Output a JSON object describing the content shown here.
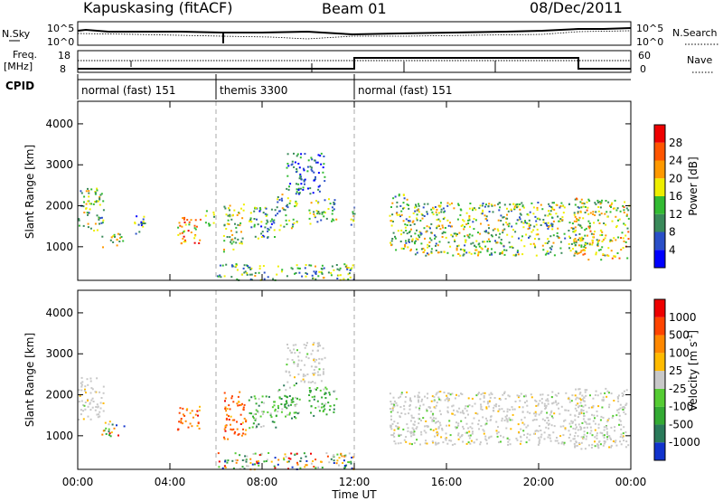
{
  "header": {
    "station": "Kapuskasing (fitACF)",
    "beam": "Beam 01",
    "date": "08/Dec/2011"
  },
  "top_panel": {
    "left_label": "N.Sky",
    "right_label": "N.Search",
    "left_ticks": [
      "10^5",
      "10^0"
    ],
    "right_ticks": [
      "10^5",
      "10^0"
    ]
  },
  "freq_panel": {
    "left_label_1": "Freq.",
    "left_label_2": "[MHz]",
    "right_label": "Nave",
    "left_ticks": [
      "18",
      "8"
    ],
    "right_ticks": [
      "60",
      "0"
    ]
  },
  "cpid": {
    "label": "CPID",
    "segments": [
      {
        "name": "normal (fast) 151",
        "start_h": 0,
        "end_h": 6
      },
      {
        "name": "themis 3300",
        "start_h": 6,
        "end_h": 12
      },
      {
        "name": "normal (fast) 151",
        "start_h": 12,
        "end_h": 24
      }
    ]
  },
  "chart_data": [
    {
      "type": "heatmap",
      "title": "Power",
      "ylabel": "Slant Range [km]",
      "xlabel": "Time UT",
      "x_ticks": [
        "00:00",
        "04:00",
        "08:00",
        "12:00",
        "16:00",
        "20:00",
        "00:00"
      ],
      "x_hours": [
        0,
        4,
        8,
        12,
        16,
        20,
        24
      ],
      "xlim_hours": [
        0,
        24
      ],
      "y_ticks": [
        1000,
        2000,
        3000,
        4000
      ],
      "ylim": [
        180,
        4550
      ],
      "colorbar": {
        "label": "Power [dB]",
        "ticks": [
          "4",
          "8",
          "12",
          "16",
          "20",
          "24",
          "28"
        ],
        "colors": [
          "#0000ff",
          "#2a4fc8",
          "#3a8a5a",
          "#33bb33",
          "#eeee00",
          "#ff9900",
          "#ff5500",
          "#ee0000"
        ]
      },
      "regions": [
        {
          "t0": 0.0,
          "t1": 1.1,
          "r0": 1400,
          "r1": 2450,
          "v": 0.45
        },
        {
          "t0": 1.0,
          "t1": 2.0,
          "r0": 1000,
          "r1": 1400,
          "v": 0.5
        },
        {
          "t0": 2.4,
          "t1": 2.9,
          "r0": 1300,
          "r1": 1900,
          "v": 0.35
        },
        {
          "t0": 4.3,
          "t1": 5.3,
          "r0": 1100,
          "r1": 1750,
          "v": 0.7
        },
        {
          "t0": 5.5,
          "t1": 5.9,
          "r0": 1500,
          "r1": 1900,
          "v": 0.4
        },
        {
          "t0": 6.3,
          "t1": 7.2,
          "r0": 900,
          "r1": 2100,
          "v": 0.5
        },
        {
          "t0": 7.4,
          "t1": 8.6,
          "r0": 1200,
          "r1": 2000,
          "v": 0.35
        },
        {
          "t0": 8.6,
          "t1": 9.5,
          "r0": 1400,
          "r1": 2300,
          "v": 0.4
        },
        {
          "t0": 9.0,
          "t1": 10.7,
          "r0": 2300,
          "r1": 3300,
          "v": 0.25
        },
        {
          "t0": 10.0,
          "t1": 11.2,
          "r0": 1500,
          "r1": 2200,
          "v": 0.4
        },
        {
          "t0": 11.8,
          "t1": 12.0,
          "r0": 1400,
          "r1": 2000,
          "v": 0.45
        },
        {
          "t0": 13.5,
          "t1": 14.3,
          "r0": 900,
          "r1": 2300,
          "v": 0.45
        },
        {
          "t0": 14.3,
          "t1": 22.0,
          "r0": 800,
          "r1": 2100,
          "v": 0.45
        },
        {
          "t0": 21.5,
          "t1": 23.9,
          "r0": 700,
          "r1": 2200,
          "v": 0.55
        },
        {
          "t0": 6.0,
          "t1": 12.0,
          "r0": 200,
          "r1": 600,
          "v": 0.4
        }
      ]
    },
    {
      "type": "heatmap",
      "title": "Velocity",
      "ylabel": "Slant Range [km]",
      "xlabel": "Time UT",
      "x_ticks": [
        "00:00",
        "04:00",
        "08:00",
        "12:00",
        "16:00",
        "20:00",
        "00:00"
      ],
      "x_hours": [
        0,
        4,
        8,
        12,
        16,
        20,
        24
      ],
      "xlim_hours": [
        0,
        24
      ],
      "y_ticks": [
        1000,
        2000,
        3000,
        4000
      ],
      "ylim": [
        180,
        4550
      ],
      "colorbar": {
        "label": "Velocity [m s^-1]",
        "label_main": "Velocity",
        "label_unit_pre": "[m s",
        "label_unit_sup": "-1",
        "label_unit_post": "]",
        "ticks": [
          "1000",
          "500",
          "100",
          "25",
          "-25",
          "-100",
          "-500",
          "-1000"
        ],
        "colors": [
          "#1133cc",
          "#2a7a5a",
          "#33aa33",
          "#55cc33",
          "#c8c8c8",
          "#ffbb00",
          "#ff8800",
          "#ff4400",
          "#ee0000"
        ]
      },
      "regions": [
        {
          "t0": 0.0,
          "t1": 1.1,
          "r0": 1400,
          "r1": 2450,
          "v": "gray"
        },
        {
          "t0": 1.0,
          "t1": 2.0,
          "r0": 1000,
          "r1": 1400,
          "v": "mix"
        },
        {
          "t0": 4.3,
          "t1": 5.3,
          "r0": 1100,
          "r1": 1750,
          "v": "neg"
        },
        {
          "t0": 6.3,
          "t1": 7.3,
          "r0": 900,
          "r1": 2100,
          "v": "neg"
        },
        {
          "t0": 7.4,
          "t1": 8.6,
          "r0": 1200,
          "r1": 2000,
          "v": "pos"
        },
        {
          "t0": 8.6,
          "t1": 9.6,
          "r0": 1400,
          "r1": 2300,
          "v": "pos"
        },
        {
          "t0": 9.0,
          "t1": 10.7,
          "r0": 2300,
          "r1": 3300,
          "v": "gray"
        },
        {
          "t0": 10.0,
          "t1": 11.2,
          "r0": 1500,
          "r1": 2200,
          "v": "pos"
        },
        {
          "t0": 13.5,
          "t1": 22.0,
          "r0": 800,
          "r1": 2100,
          "v": "gray"
        },
        {
          "t0": 21.5,
          "t1": 23.9,
          "r0": 700,
          "r1": 2200,
          "v": "gray"
        },
        {
          "t0": 6.0,
          "t1": 12.0,
          "r0": 200,
          "r1": 600,
          "v": "mix"
        }
      ]
    }
  ]
}
